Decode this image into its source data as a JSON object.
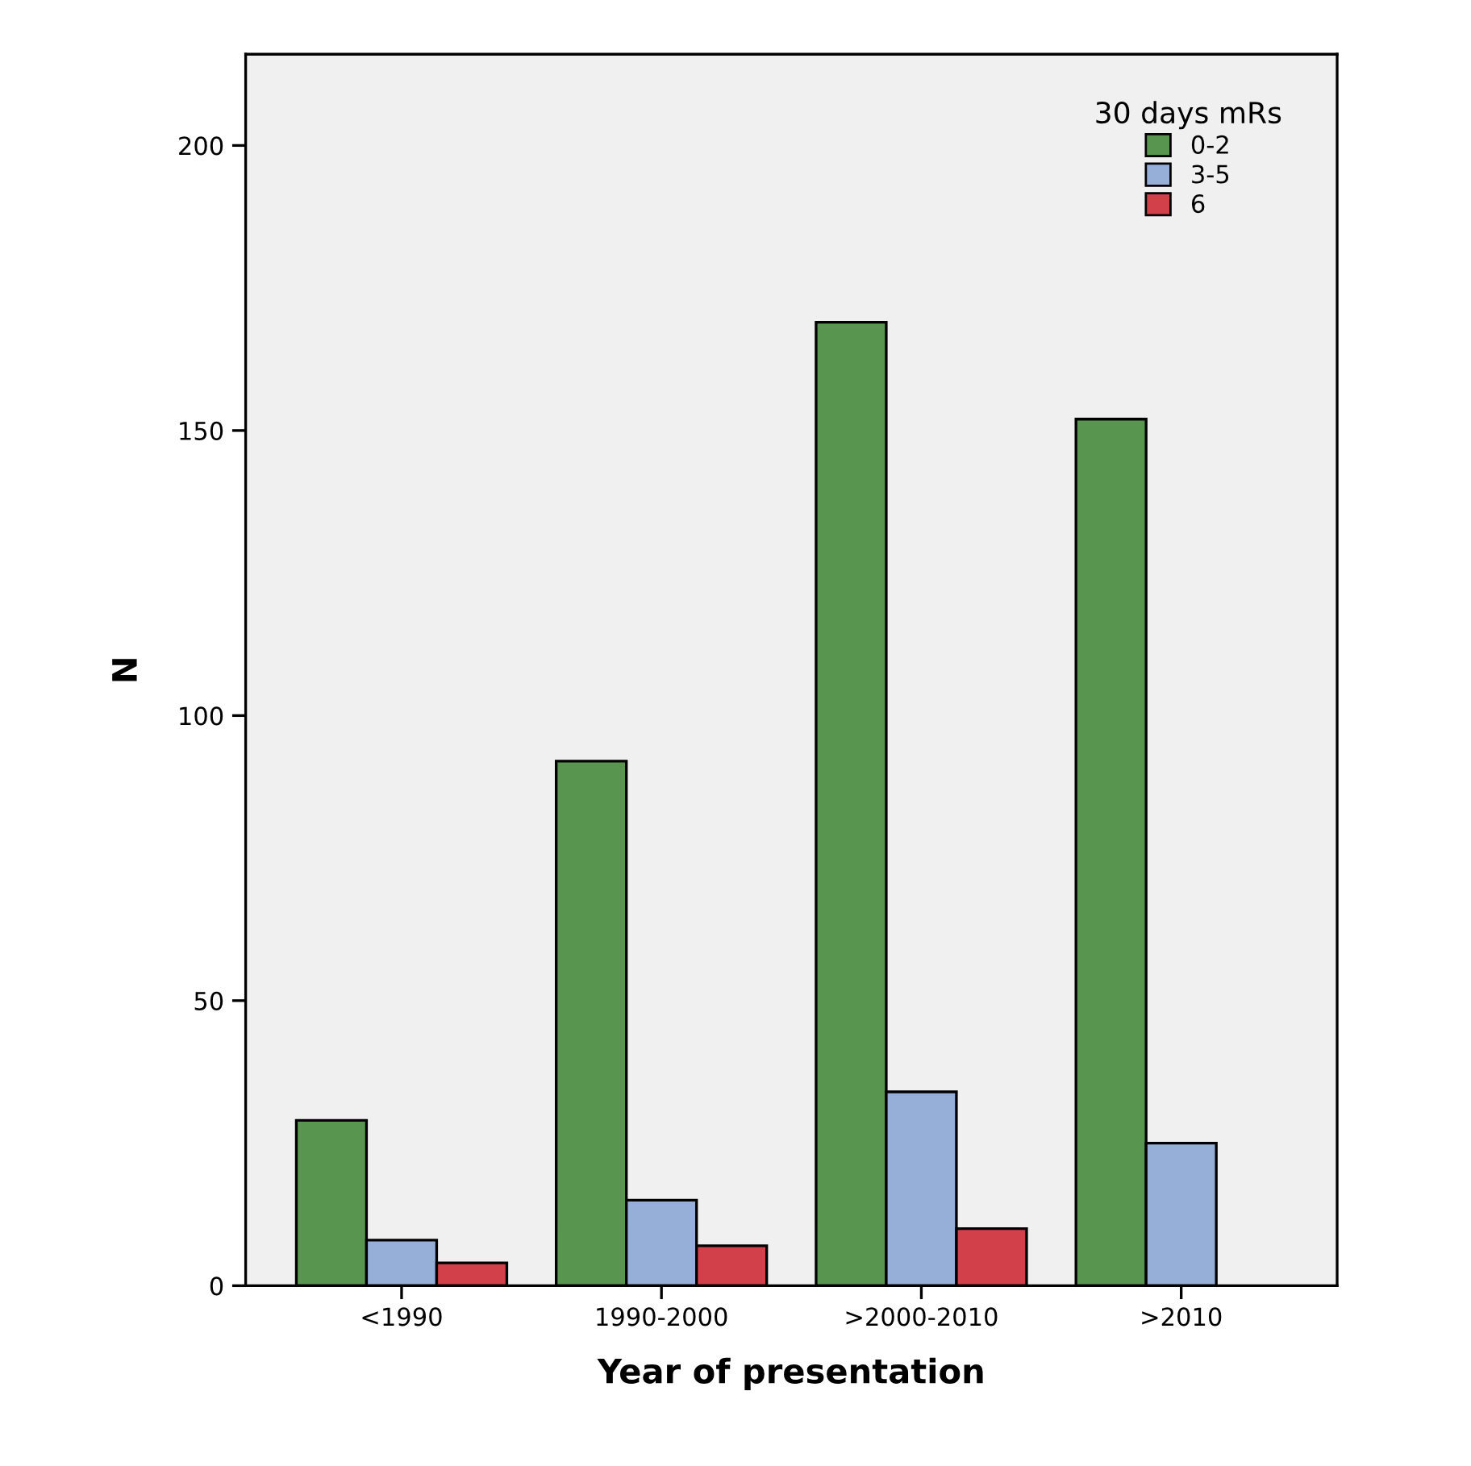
{
  "chart_data": {
    "type": "bar",
    "xlabel": "Year of presentation",
    "ylabel": "N",
    "legend_title": "30 days mRs",
    "categories": [
      "<1990",
      "1990-2000",
      ">2000-2010",
      ">2010"
    ],
    "series": [
      {
        "name": "0-2",
        "color": "#58964f",
        "values": [
          29,
          92,
          169,
          152
        ]
      },
      {
        "name": "3-5",
        "color": "#95afd9",
        "values": [
          8,
          15,
          34,
          25
        ]
      },
      {
        "name": "6",
        "color": "#d2404a",
        "values": [
          4,
          7,
          10,
          null
        ]
      }
    ],
    "ylim": [
      0,
      216
    ],
    "yticks": [
      0,
      50,
      100,
      150,
      200
    ],
    "grid": false,
    "legend": "top right"
  }
}
